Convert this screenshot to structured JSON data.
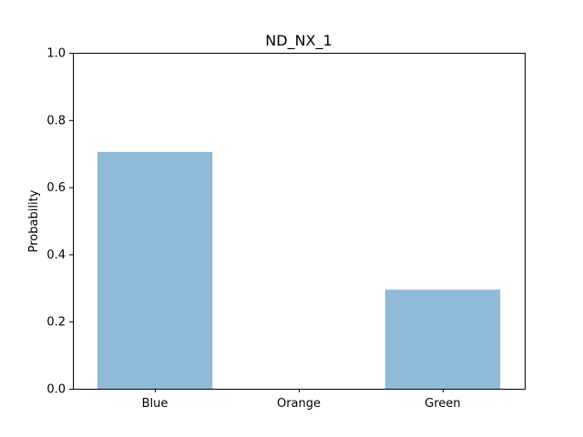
{
  "chart_data": {
    "type": "bar",
    "title": "ND_NX_1",
    "xlabel": "",
    "ylabel": "Probability",
    "categories": [
      "Blue",
      "Orange",
      "Green"
    ],
    "values": [
      0.705,
      0.0,
      0.295
    ],
    "ylim": [
      0,
      1.0
    ],
    "yticks": [
      0.0,
      0.2,
      0.4,
      0.6,
      0.8,
      1.0
    ],
    "ytick_labels": [
      "0.0",
      "0.2",
      "0.4",
      "0.6",
      "0.8",
      "1.0"
    ],
    "grid": false,
    "legend": "none",
    "bar_color": "#8fbbd9"
  }
}
